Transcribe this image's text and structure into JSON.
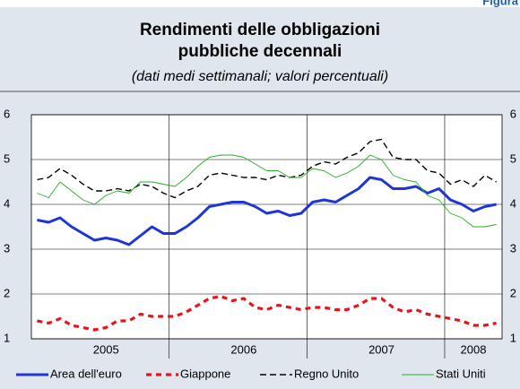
{
  "chart_data": {
    "type": "line",
    "label": "Figura",
    "title": "Rendimenti delle obbligazioni",
    "title_line2": "pubbliche decennali",
    "subtitle": "(dati medi settimanali; valori percentuali)",
    "categories": [
      null,
      null,
      null,
      null,
      null,
      null,
      "2005",
      null,
      null,
      null,
      null,
      null,
      null,
      null,
      null,
      null,
      null,
      null,
      "2006",
      null,
      null,
      null,
      null,
      null,
      null,
      null,
      null,
      null,
      null,
      null,
      "2007",
      null,
      null,
      null,
      null,
      null,
      null,
      null,
      "2008",
      null,
      null
    ],
    "series": [
      {
        "name": "Area dell'euro",
        "color": "#1f35d6",
        "line_style": "solid",
        "values": [
          3.65,
          3.6,
          3.7,
          3.5,
          3.35,
          3.2,
          3.25,
          3.2,
          3.1,
          3.3,
          3.5,
          3.35,
          3.35,
          3.5,
          3.7,
          3.95,
          4.0,
          4.05,
          4.05,
          3.95,
          3.8,
          3.85,
          3.75,
          3.8,
          4.05,
          4.1,
          4.05,
          4.2,
          4.35,
          4.6,
          4.55,
          4.35,
          4.35,
          4.4,
          4.25,
          4.35,
          4.1,
          4.0,
          3.85,
          3.95,
          4.0
        ]
      },
      {
        "name": "Giappone",
        "color": "#e8141b",
        "line_style": "dashed",
        "values": [
          1.4,
          1.35,
          1.45,
          1.3,
          1.25,
          1.2,
          1.25,
          1.4,
          1.4,
          1.55,
          1.5,
          1.5,
          1.5,
          1.6,
          1.75,
          1.9,
          1.95,
          1.85,
          1.9,
          1.7,
          1.65,
          1.75,
          1.7,
          1.65,
          1.7,
          1.7,
          1.65,
          1.65,
          1.75,
          1.9,
          1.9,
          1.7,
          1.6,
          1.65,
          1.55,
          1.5,
          1.45,
          1.4,
          1.3,
          1.3,
          1.35
        ]
      },
      {
        "name": "Regno Unito",
        "color": "#000000",
        "line_style": "dashed-thin",
        "values": [
          4.55,
          4.6,
          4.8,
          4.65,
          4.45,
          4.3,
          4.3,
          4.35,
          4.3,
          4.45,
          4.4,
          4.25,
          4.15,
          4.3,
          4.4,
          4.65,
          4.7,
          4.65,
          4.6,
          4.6,
          4.55,
          4.65,
          4.6,
          4.65,
          4.85,
          4.95,
          4.9,
          5.05,
          5.15,
          5.4,
          5.45,
          5.05,
          5.0,
          5.0,
          4.75,
          4.7,
          4.45,
          4.55,
          4.4,
          4.65,
          4.5
        ]
      },
      {
        "name": "Stati Uniti",
        "color": "#22b022",
        "line_style": "thin",
        "values": [
          4.25,
          4.15,
          4.5,
          4.3,
          4.1,
          4.0,
          4.2,
          4.3,
          4.25,
          4.5,
          4.5,
          4.45,
          4.4,
          4.6,
          4.85,
          5.05,
          5.1,
          5.1,
          5.05,
          4.9,
          4.75,
          4.75,
          4.6,
          4.6,
          4.8,
          4.75,
          4.6,
          4.7,
          4.85,
          5.1,
          5.0,
          4.65,
          4.55,
          4.5,
          4.2,
          4.1,
          3.8,
          3.7,
          3.5,
          3.5,
          3.55
        ]
      }
    ],
    "ylim": [
      1,
      6
    ],
    "yticks": [
      1,
      2,
      3,
      4,
      5,
      6
    ],
    "grid": true
  }
}
